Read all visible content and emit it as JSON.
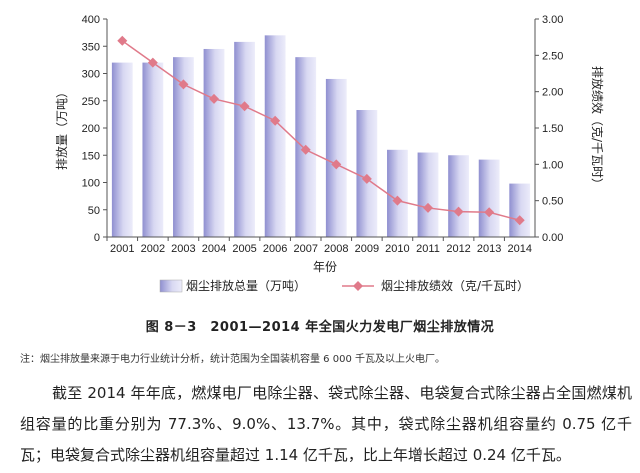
{
  "chart_data": {
    "type": "bar+line",
    "categories": [
      "2001",
      "2002",
      "2003",
      "2004",
      "2005",
      "2006",
      "2007",
      "2008",
      "2009",
      "2010",
      "2011",
      "2012",
      "2013",
      "2014"
    ],
    "series": [
      {
        "name": "烟尘排放总量（万吨）",
        "type": "bar",
        "axis": "left",
        "values": [
          320,
          320,
          330,
          345,
          358,
          370,
          330,
          290,
          233,
          160,
          155,
          150,
          142,
          98
        ]
      },
      {
        "name": "烟尘排放绩效（克/千瓦时）",
        "type": "line",
        "axis": "right",
        "values": [
          2.7,
          2.4,
          2.1,
          1.9,
          1.8,
          1.6,
          1.2,
          1.0,
          0.8,
          0.5,
          0.4,
          0.35,
          0.34,
          0.23
        ]
      }
    ],
    "xlabel": "年份",
    "ylabel_left": "排放量（万吨）",
    "ylabel_right": "排放绩效（克/千瓦时）",
    "ylim_left": [
      0,
      400
    ],
    "ylim_right": [
      0,
      3.0
    ],
    "yticks_left": [
      "0",
      "50",
      "100",
      "150",
      "200",
      "250",
      "300",
      "350",
      "400"
    ],
    "yticks_right": [
      "0.00",
      "0.50",
      "1.00",
      "1.50",
      "2.00",
      "2.50",
      "3.00"
    ],
    "grid": false,
    "legend_placement": "bottom",
    "colors": {
      "bar": "#c9c9ec",
      "bar_dark": "#8f8fd0",
      "line": "#e07a8a",
      "axis": "#555555"
    }
  },
  "caption": "图 8－3　2001—2014 年全国火力发电厂烟尘排放情况",
  "note": "注：烟尘排放量来源于电力行业统计分析，统计范围为全国装机容量 6 000 千瓦及以上火电厂。",
  "paragraph": "截至 2014 年年底，燃煤电厂电除尘器、袋式除尘器、电袋复合式除尘器占全国燃煤机组容量的比重分别为 77.3%、9.0%、13.7%。其中，袋式除尘器机组容量约 0.75 亿千瓦；电袋复合式除尘器机组容量超过 1.14 亿千瓦，比上年增长超过 0.24 亿千瓦。"
}
